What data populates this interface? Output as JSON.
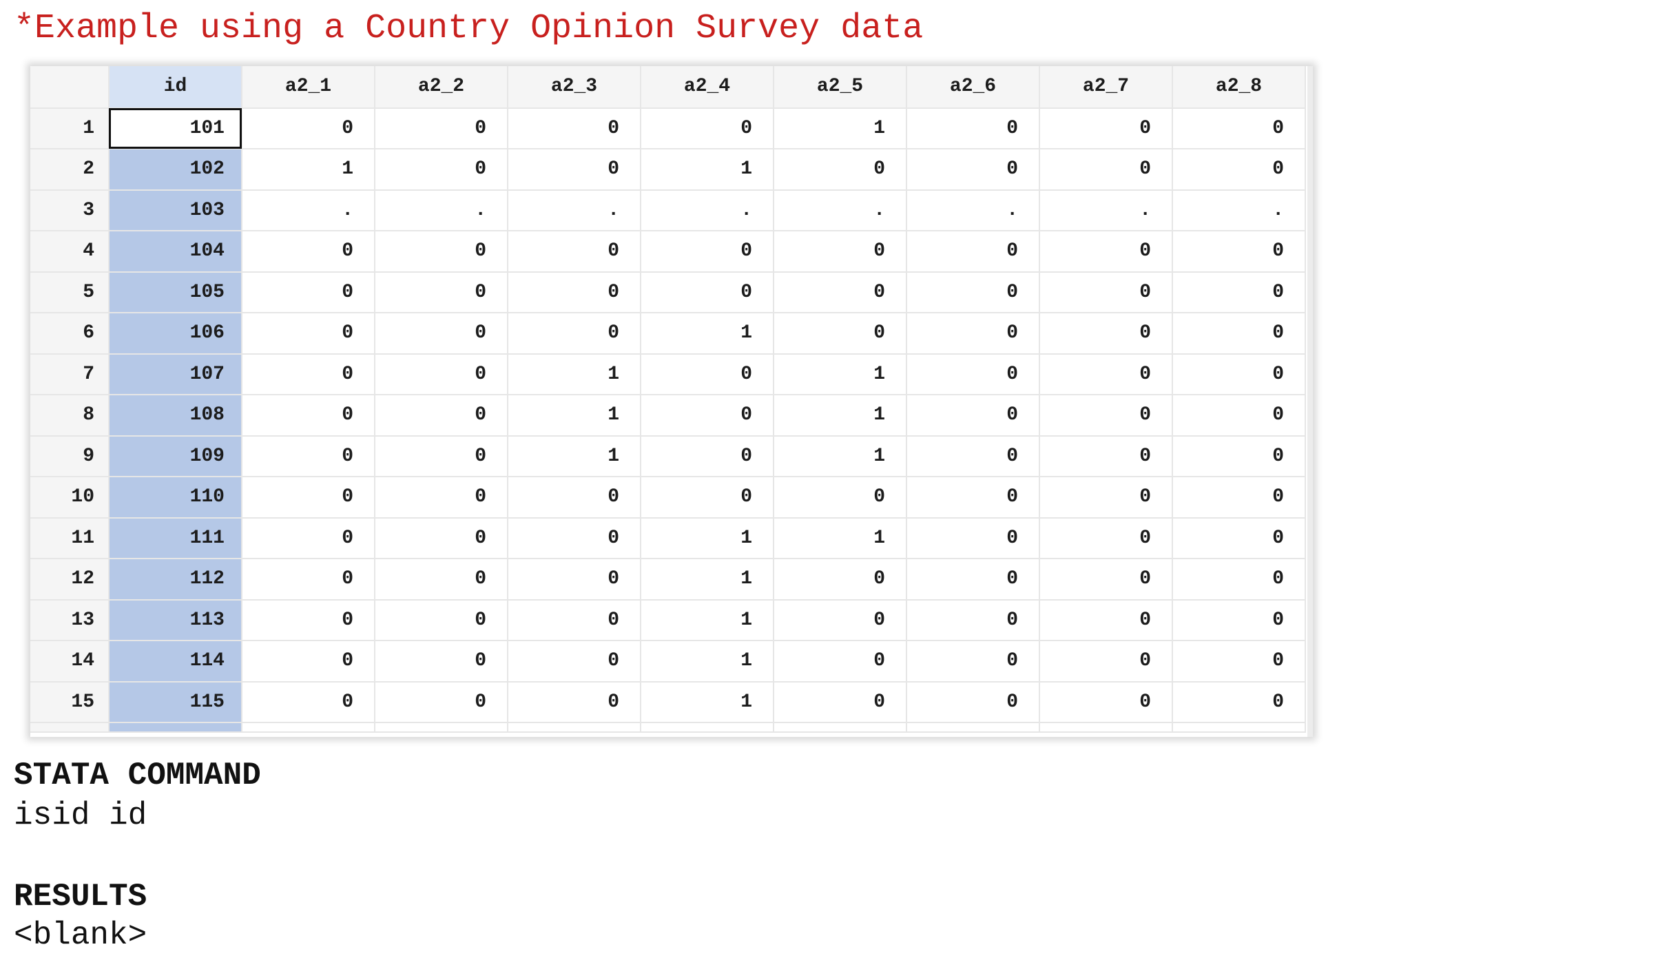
{
  "title": "*Example using a Country Opinion Survey data",
  "grid": {
    "columns": [
      "id",
      "a2_1",
      "a2_2",
      "a2_3",
      "a2_4",
      "a2_5",
      "a2_6",
      "a2_7",
      "a2_8"
    ],
    "rows": [
      {
        "n": "1",
        "id": "101",
        "v": [
          "0",
          "0",
          "0",
          "0",
          "1",
          "0",
          "0",
          "0"
        ]
      },
      {
        "n": "2",
        "id": "102",
        "v": [
          "1",
          "0",
          "0",
          "1",
          "0",
          "0",
          "0",
          "0"
        ]
      },
      {
        "n": "3",
        "id": "103",
        "v": [
          ".",
          ".",
          ".",
          ".",
          ".",
          ".",
          ".",
          "."
        ]
      },
      {
        "n": "4",
        "id": "104",
        "v": [
          "0",
          "0",
          "0",
          "0",
          "0",
          "0",
          "0",
          "0"
        ]
      },
      {
        "n": "5",
        "id": "105",
        "v": [
          "0",
          "0",
          "0",
          "0",
          "0",
          "0",
          "0",
          "0"
        ]
      },
      {
        "n": "6",
        "id": "106",
        "v": [
          "0",
          "0",
          "0",
          "1",
          "0",
          "0",
          "0",
          "0"
        ]
      },
      {
        "n": "7",
        "id": "107",
        "v": [
          "0",
          "0",
          "1",
          "0",
          "1",
          "0",
          "0",
          "0"
        ]
      },
      {
        "n": "8",
        "id": "108",
        "v": [
          "0",
          "0",
          "1",
          "0",
          "1",
          "0",
          "0",
          "0"
        ]
      },
      {
        "n": "9",
        "id": "109",
        "v": [
          "0",
          "0",
          "1",
          "0",
          "1",
          "0",
          "0",
          "0"
        ]
      },
      {
        "n": "10",
        "id": "110",
        "v": [
          "0",
          "0",
          "0",
          "0",
          "0",
          "0",
          "0",
          "0"
        ]
      },
      {
        "n": "11",
        "id": "111",
        "v": [
          "0",
          "0",
          "0",
          "1",
          "1",
          "0",
          "0",
          "0"
        ]
      },
      {
        "n": "12",
        "id": "112",
        "v": [
          "0",
          "0",
          "0",
          "1",
          "0",
          "0",
          "0",
          "0"
        ]
      },
      {
        "n": "13",
        "id": "113",
        "v": [
          "0",
          "0",
          "0",
          "1",
          "0",
          "0",
          "0",
          "0"
        ]
      },
      {
        "n": "14",
        "id": "114",
        "v": [
          "0",
          "0",
          "0",
          "1",
          "0",
          "0",
          "0",
          "0"
        ]
      },
      {
        "n": "15",
        "id": "115",
        "v": [
          "0",
          "0",
          "0",
          "1",
          "0",
          "0",
          "0",
          "0"
        ]
      }
    ]
  },
  "command_heading": "STATA COMMAND",
  "command": "isid id",
  "results_heading": "RESULTS",
  "results": "<blank>",
  "colors": {
    "title": "#c8201e",
    "id_column": "#b5c8e7",
    "id_header": "#d6e2f4"
  }
}
